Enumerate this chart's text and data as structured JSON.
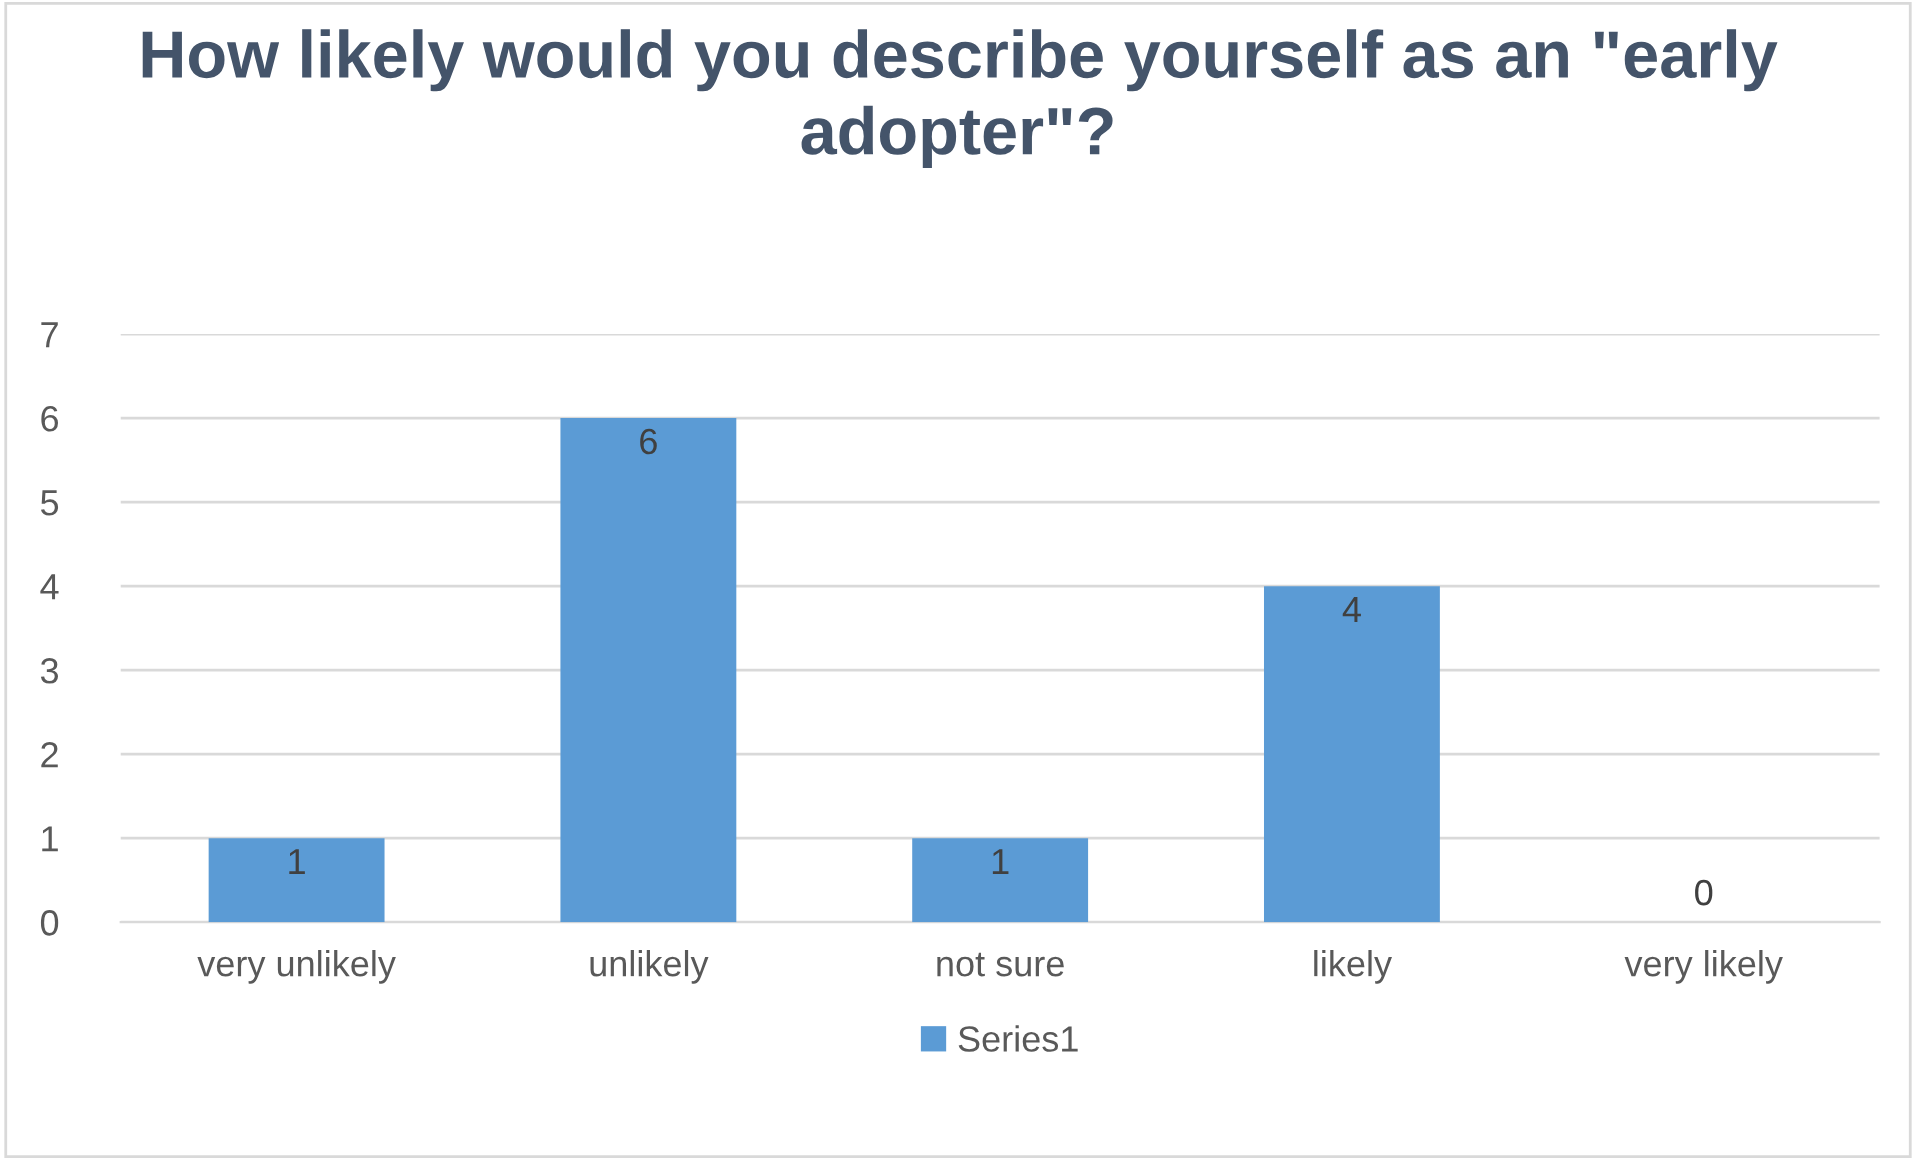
{
  "chart_data": {
    "type": "bar",
    "title": "How likely would you describe yourself as an \"early adopter\"?",
    "categories": [
      "very unlikely",
      "unlikely",
      "not sure",
      "likely",
      "very likely"
    ],
    "series": [
      {
        "name": "Series1",
        "color": "#5b9bd5",
        "values": [
          1,
          6,
          1,
          4,
          0
        ]
      }
    ],
    "ylim": [
      0,
      7
    ],
    "yticks": [
      0,
      1,
      2,
      3,
      4,
      5,
      6,
      7
    ],
    "grid": "y",
    "legend": "bottom",
    "data_labels": true
  }
}
